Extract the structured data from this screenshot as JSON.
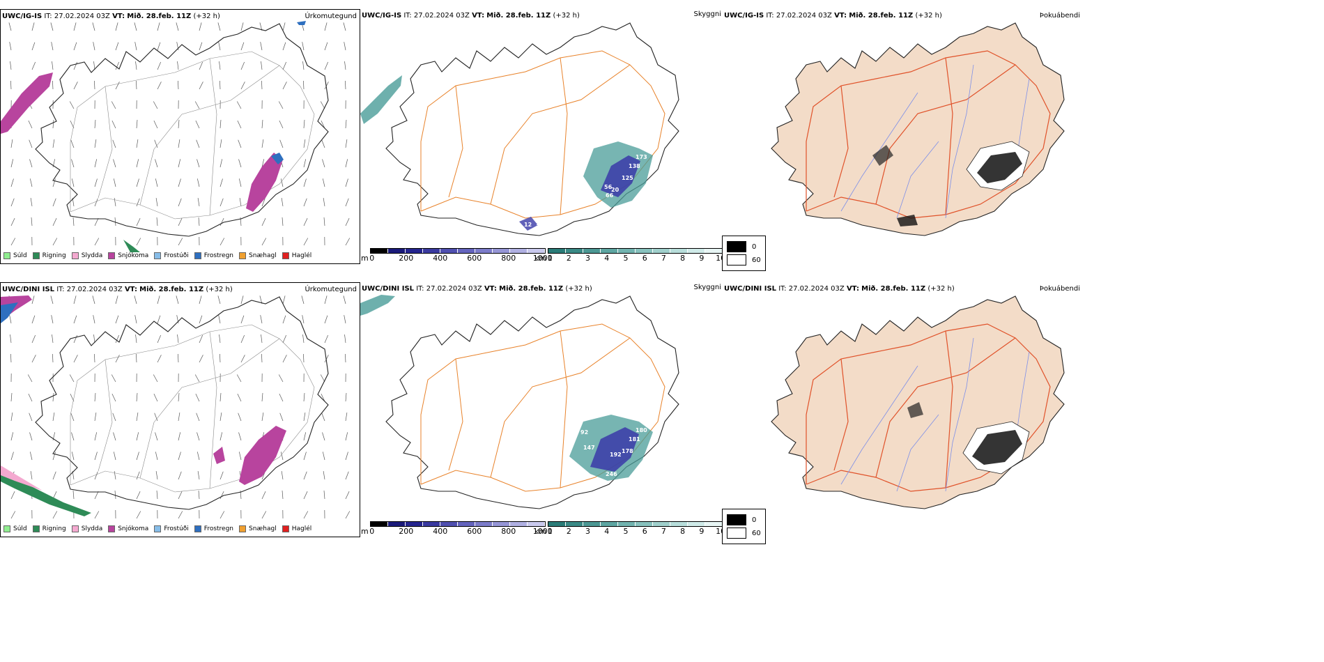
{
  "rows": [
    {
      "model": "UWC/IG-IS",
      "it_label": "IT:",
      "it_value": "27.02.2024 03Z",
      "vt_label": "VT:",
      "vt_value": "Mið. 28.feb. 11Z",
      "lead": "(+32 h)"
    },
    {
      "model": "UWC/DINI ISL",
      "it_label": "IT:",
      "it_value": "27.02.2024 03Z",
      "vt_label": "VT:",
      "vt_value": "Mið. 28.feb. 11Z",
      "lead": "(+32 h)"
    }
  ],
  "panel_titles": {
    "precip": "Úrkomutegund",
    "visibility": "Skyggni",
    "fog": "Þokuábendi"
  },
  "precip_legend": [
    {
      "label": "Súld",
      "color": "#90ee90"
    },
    {
      "label": "Rigning",
      "color": "#2e8b57"
    },
    {
      "label": "Slydda",
      "color": "#f4a9d0"
    },
    {
      "label": "Snjókoma",
      "color": "#b8449e"
    },
    {
      "label": "Frostúði",
      "color": "#87bde8"
    },
    {
      "label": "Frostregn",
      "color": "#2e6fbf"
    },
    {
      "label": "Snæhagl",
      "color": "#f0a030"
    },
    {
      "label": "Haglél",
      "color": "#e02020"
    }
  ],
  "cbar_m": {
    "unit": "m",
    "ticks": [
      "0",
      "200",
      "400",
      "600",
      "800",
      "1000"
    ],
    "colors": [
      "#000000",
      "#1a1a7a",
      "#25258f",
      "#3a3aa0",
      "#5050b0",
      "#6464be",
      "#7c7cca",
      "#9696d6",
      "#b0b0e2",
      "#cacaee"
    ]
  },
  "cbar_km": {
    "unit": "km",
    "ticks": [
      "1",
      "2",
      "3",
      "4",
      "5",
      "6",
      "7",
      "8",
      "9",
      "10"
    ],
    "colors": [
      "#2a7c78",
      "#3a8a86",
      "#4c9894",
      "#5ea6a2",
      "#72b4b0",
      "#88c2be",
      "#a0d0cc",
      "#b8dedb",
      "#d0ebe9",
      "#e8f6f5"
    ]
  },
  "fog_legend": {
    "high": "0",
    "low": "60"
  },
  "visibility_labels": [
    [
      "173",
      "138",
      "125",
      "56",
      "20",
      "12",
      "15",
      "66"
    ],
    [
      "180",
      "181",
      "192",
      "178",
      "147",
      "92",
      "246",
      "15"
    ]
  ],
  "map_colors": {
    "land_fog": "#f3dcc8",
    "roads": "#e8822a",
    "roads_fog": "#e0522a",
    "rivers": "#7d8fe8",
    "snow": "#b8449e",
    "vis_teal": "#4a9c98",
    "vis_blue": "#3a3aa8"
  }
}
